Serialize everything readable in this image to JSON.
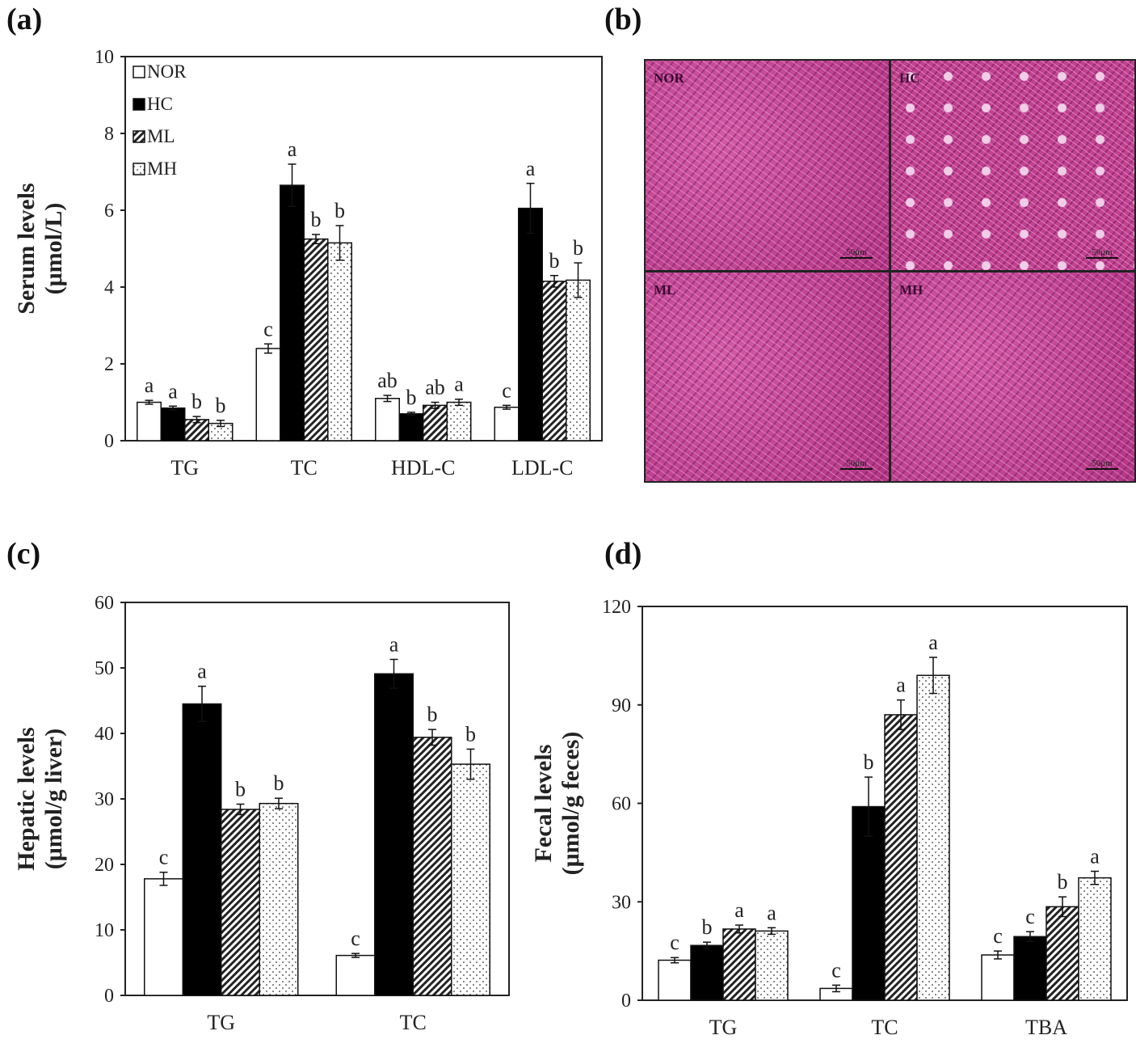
{
  "panels": {
    "a": "(a)",
    "b": "(b)",
    "c": "(c)",
    "d": "(d)"
  },
  "histology": {
    "tiles": [
      {
        "label": "NOR",
        "scale": "50μm"
      },
      {
        "label": "HC",
        "scale": "50μm"
      },
      {
        "label": "ML",
        "scale": "50μm"
      },
      {
        "label": "MH",
        "scale": "50μm"
      }
    ]
  },
  "chart_data": [
    {
      "id": "a",
      "type": "bar",
      "ylabel": [
        "Serum levels",
        "(μmol/L)"
      ],
      "ylim": [
        0,
        10
      ],
      "yticks": [
        "0",
        "2",
        "4",
        "6",
        "8",
        "10"
      ],
      "categories": [
        "TG",
        "TC",
        "HDL-C",
        "LDL-C"
      ],
      "legend": {
        "position": "top-left",
        "entries": [
          "NOR",
          "HC",
          "ML",
          "MH"
        ]
      },
      "series": [
        {
          "name": "NOR",
          "values": [
            1.0,
            2.4,
            1.1,
            0.87
          ],
          "errors": [
            0.05,
            0.12,
            0.08,
            0.05
          ],
          "letters": [
            "a",
            "c",
            "ab",
            "c"
          ]
        },
        {
          "name": "HC",
          "values": [
            0.85,
            6.65,
            0.7,
            6.05
          ],
          "errors": [
            0.05,
            0.55,
            0.04,
            0.65
          ],
          "letters": [
            "a",
            "a",
            "b",
            "a"
          ]
        },
        {
          "name": "ML",
          "values": [
            0.55,
            5.25,
            0.92,
            4.15
          ],
          "errors": [
            0.08,
            0.12,
            0.08,
            0.15
          ],
          "letters": [
            "b",
            "b",
            "ab",
            "b"
          ]
        },
        {
          "name": "MH",
          "values": [
            0.45,
            5.15,
            1.0,
            4.18
          ],
          "errors": [
            0.08,
            0.45,
            0.08,
            0.45
          ],
          "letters": [
            "b",
            "b",
            "a",
            "b"
          ]
        }
      ]
    },
    {
      "id": "c",
      "type": "bar",
      "ylabel": [
        "Hepatic levels",
        "(μmol/g liver)"
      ],
      "ylim": [
        0,
        60
      ],
      "yticks": [
        "0",
        "10",
        "20",
        "30",
        "40",
        "50",
        "60"
      ],
      "categories": [
        "TG",
        "TC"
      ],
      "series": [
        {
          "name": "NOR",
          "values": [
            17.8,
            6.1
          ],
          "errors": [
            1.0,
            0.3
          ],
          "letters": [
            "c",
            "c"
          ]
        },
        {
          "name": "HC",
          "values": [
            44.5,
            49.1
          ],
          "errors": [
            2.7,
            2.2
          ],
          "letters": [
            "a",
            "a"
          ]
        },
        {
          "name": "ML",
          "values": [
            28.4,
            39.4
          ],
          "errors": [
            0.8,
            1.2
          ],
          "letters": [
            "b",
            "b"
          ]
        },
        {
          "name": "MH",
          "values": [
            29.3,
            35.3
          ],
          "errors": [
            0.8,
            2.3
          ],
          "letters": [
            "b",
            "b"
          ]
        }
      ]
    },
    {
      "id": "d",
      "type": "bar",
      "ylabel": [
        "Fecal levels",
        "(μmol/g feces)"
      ],
      "ylim": [
        0,
        120
      ],
      "yticks": [
        "0",
        "30",
        "60",
        "90",
        "120"
      ],
      "categories": [
        "TG",
        "TC",
        "TBA"
      ],
      "series": [
        {
          "name": "NOR",
          "values": [
            12.2,
            3.6,
            13.8
          ],
          "errors": [
            0.8,
            1.0,
            1.2
          ],
          "letters": [
            "c",
            "c",
            "c"
          ]
        },
        {
          "name": "HC",
          "values": [
            16.7,
            59.0,
            19.4
          ],
          "errors": [
            1.0,
            9.0,
            1.5
          ],
          "letters": [
            "b",
            "b",
            "c"
          ]
        },
        {
          "name": "ML",
          "values": [
            21.7,
            87.0,
            28.5
          ],
          "errors": [
            1.2,
            4.5,
            3.0
          ],
          "letters": [
            "a",
            "a",
            "b"
          ]
        },
        {
          "name": "MH",
          "values": [
            21.1,
            99.0,
            37.3
          ],
          "errors": [
            1.0,
            5.5,
            2.0
          ],
          "letters": [
            "a",
            "a",
            "a"
          ]
        }
      ]
    }
  ]
}
